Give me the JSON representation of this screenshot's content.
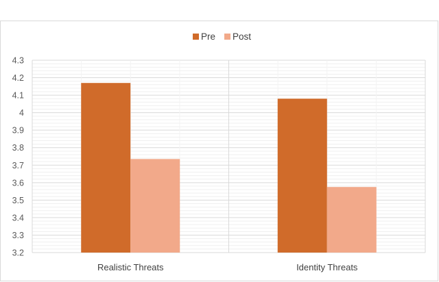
{
  "chart_data": {
    "type": "bar",
    "categories": [
      "Realistic Threats",
      "Identity Threats"
    ],
    "series": [
      {
        "name": "Pre",
        "values": [
          4.17,
          4.08
        ],
        "color": "#d06b2a"
      },
      {
        "name": "Post",
        "values": [
          3.735,
          3.575
        ],
        "color": "#f2a98a"
      }
    ],
    "yticks": [
      "3.2",
      "3.3",
      "3.4",
      "3.5",
      "3.6",
      "3.7",
      "3.8",
      "3.9",
      "4",
      "4.1",
      "4.2",
      "4.3"
    ],
    "ylim": [
      3.2,
      4.3
    ],
    "grid": true,
    "minor_grid": true,
    "legend_position": "top-center"
  }
}
